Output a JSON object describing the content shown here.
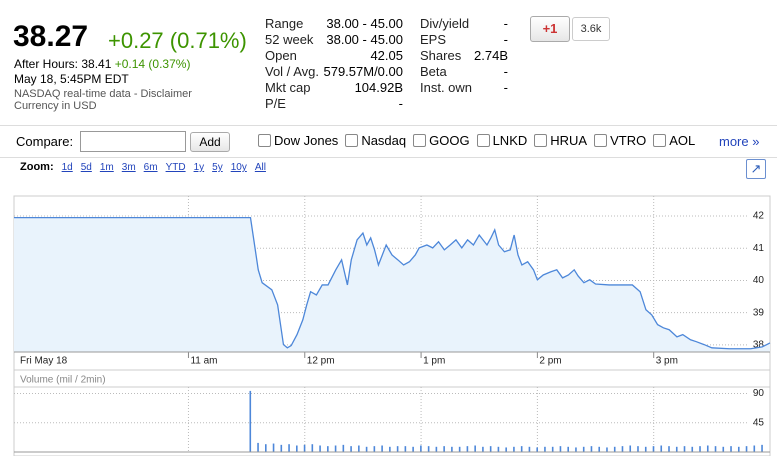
{
  "quote": {
    "price": "38.27",
    "change": "+0.27 (0.71%)",
    "after_hours_label": "After Hours: 38.41",
    "after_hours_change": "+0.14 (0.37%)",
    "time": "May 18, 5:45PM EDT",
    "source": "NASDAQ real-time data -",
    "disclaimer": "Disclaimer",
    "currency": "Currency in USD"
  },
  "stats": {
    "left": [
      {
        "label": "Range",
        "value": "38.00 - 45.00"
      },
      {
        "label": "52 week",
        "value": "38.00 - 45.00"
      },
      {
        "label": "Open",
        "value": "42.05"
      },
      {
        "label": "Vol / Avg.",
        "value": "579.57M/0.00"
      },
      {
        "label": "Mkt cap",
        "value": "104.92B"
      },
      {
        "label": "P/E",
        "value": "-"
      }
    ],
    "right": [
      {
        "label": "Div/yield",
        "value": "-"
      },
      {
        "label": "EPS",
        "value": "-"
      },
      {
        "label": "Shares",
        "value": "2.74B"
      },
      {
        "label": "Beta",
        "value": "-"
      },
      {
        "label": "Inst. own",
        "value": "-"
      }
    ]
  },
  "social": {
    "button": "+1",
    "count": "3.6k"
  },
  "compare": {
    "label": "Compare:",
    "button": "Add",
    "options": [
      "Dow Jones",
      "Nasdaq",
      "GOOG",
      "LNKD",
      "HRUA",
      "VTRO",
      "AOL"
    ],
    "more": "more »"
  },
  "zoom": {
    "label": "Zoom:",
    "options": [
      "1d",
      "5d",
      "1m",
      "3m",
      "6m",
      "YTD",
      "1y",
      "5y",
      "10y",
      "All"
    ]
  },
  "chart_data": [
    {
      "type": "area",
      "color": "#4d87d9",
      "fill": "#e9f3fc",
      "grid": true,
      "x": [
        570,
        692,
        696,
        698,
        703,
        706,
        709,
        711,
        713,
        716,
        719,
        721,
        723,
        726,
        729,
        732,
        736,
        739,
        742,
        744,
        747,
        750,
        752,
        754,
        756,
        758,
        760,
        762,
        765,
        768,
        771,
        774,
        777,
        779,
        783,
        786,
        789,
        792,
        795,
        798,
        801,
        804,
        807,
        810,
        814,
        816,
        818,
        820,
        823,
        826,
        828,
        830,
        832,
        835,
        838,
        840,
        843,
        847,
        850,
        853,
        856,
        859,
        861,
        864,
        867,
        870,
        877,
        885,
        889,
        893,
        896,
        899,
        902,
        905,
        908,
        912,
        915,
        919,
        922,
        926,
        930,
        939,
        950,
        956,
        960
      ],
      "values": [
        41.95,
        41.95,
        40.33,
        39.93,
        39.71,
        39.24,
        38.01,
        37.91,
        37.98,
        38.32,
        38.78,
        39.24,
        39.65,
        39.55,
        39.86,
        39.86,
        40.33,
        40.64,
        39.86,
        40.64,
        41.26,
        41.47,
        41.1,
        41.32,
        40.95,
        40.48,
        40.79,
        41.1,
        40.79,
        40.64,
        40.48,
        40.58,
        40.79,
        41.01,
        41.1,
        41.01,
        41.2,
        40.95,
        41.1,
        41.26,
        41.01,
        41.26,
        41.1,
        41.41,
        41.1,
        41.32,
        41.57,
        41.1,
        40.89,
        40.95,
        41.41,
        40.79,
        40.48,
        40.58,
        40.33,
        40.02,
        40.17,
        40.27,
        40.33,
        40.08,
        40.17,
        40.33,
        40.14,
        39.93,
        40.02,
        39.89,
        39.86,
        39.86,
        39.86,
        39.65,
        39.09,
        38.93,
        38.63,
        38.53,
        38.47,
        38.25,
        38.32,
        38.16,
        38.1,
        38.01,
        37.91,
        37.88,
        37.88,
        37.94,
        38.06
      ],
      "xlim": [
        570,
        960
      ],
      "xticks": [
        {
          "value": 570,
          "label": "Fri May 18"
        },
        {
          "value": 660,
          "label": "11 am"
        },
        {
          "value": 720,
          "label": "12 pm"
        },
        {
          "value": 780,
          "label": "1 pm"
        },
        {
          "value": 840,
          "label": "2 pm"
        },
        {
          "value": 900,
          "label": "3 pm"
        }
      ],
      "ylim": [
        37.78,
        42.62
      ],
      "yticks": [
        38,
        39,
        40,
        41,
        42
      ]
    },
    {
      "type": "bar",
      "title": "Volume (mil / 2min)",
      "color": "#4d87d9",
      "grid": true,
      "x": [
        692,
        696,
        700,
        704,
        708,
        712,
        716,
        720,
        724,
        728,
        732,
        736,
        740,
        744,
        748,
        752,
        756,
        760,
        764,
        768,
        772,
        776,
        780,
        784,
        788,
        792,
        796,
        800,
        804,
        808,
        812,
        816,
        820,
        824,
        828,
        832,
        836,
        840,
        844,
        848,
        852,
        856,
        860,
        864,
        868,
        872,
        876,
        880,
        884,
        888,
        892,
        896,
        900,
        904,
        908,
        912,
        916,
        920,
        924,
        928,
        932,
        936,
        940,
        944,
        948,
        952,
        956
      ],
      "values": [
        94,
        14,
        12,
        13,
        11,
        12,
        10,
        11,
        12,
        10,
        9,
        10,
        11,
        9,
        10,
        8,
        9,
        10,
        8,
        9,
        9,
        8,
        10,
        9,
        8,
        9,
        8,
        8,
        9,
        10,
        8,
        9,
        8,
        7,
        8,
        9,
        8,
        7,
        8,
        8,
        9,
        8,
        7,
        8,
        9,
        8,
        7,
        8,
        9,
        10,
        9,
        8,
        9,
        10,
        9,
        8,
        9,
        8,
        9,
        10,
        9,
        8,
        9,
        8,
        9,
        10,
        11
      ],
      "xlim": [
        570,
        960
      ],
      "ylim": [
        0,
        100
      ],
      "yticks": [
        45,
        90
      ]
    }
  ]
}
